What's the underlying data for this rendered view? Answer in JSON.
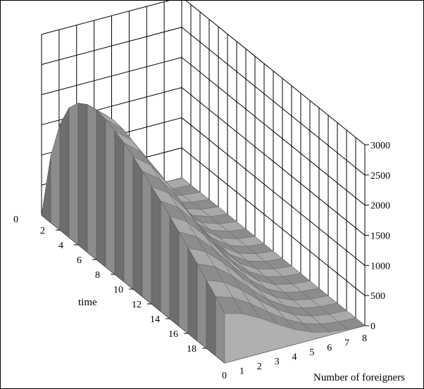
{
  "chart_data": {
    "type": "surface",
    "title": "",
    "xlabel": "time",
    "ylabel": "Number of foreigners",
    "zlabel": "",
    "x_ticks": [
      "2",
      "4",
      "6",
      "8",
      "10",
      "12",
      "14",
      "16",
      "18"
    ],
    "y_ticks": [
      "0",
      "1",
      "2",
      "3",
      "4",
      "5",
      "6",
      "7",
      "8"
    ],
    "z_ticks": [
      "0",
      "500",
      "1000",
      "1500",
      "2000",
      "2500",
      "3000"
    ],
    "corner_zero_label": "0",
    "xlim": [
      0,
      20
    ],
    "ylim": [
      0,
      8
    ],
    "zlim": [
      0,
      3000
    ],
    "grid": true,
    "x": [
      0,
      1,
      2,
      3,
      4,
      5,
      6,
      7,
      8,
      9,
      10,
      11,
      12,
      13,
      14,
      15,
      16,
      17,
      18,
      19,
      20
    ],
    "peak_at_zero_foreigners": [
      0,
      1100,
      1750,
      2150,
      2350,
      2450,
      2480,
      2450,
      2380,
      2300,
      2200,
      2080,
      1950,
      1830,
      1700,
      1560,
      1420,
      1280,
      1130,
      980,
      820
    ],
    "decay_per_foreigner": [
      1.0,
      0.9,
      0.72,
      0.5,
      0.3,
      0.15,
      0.06,
      0.02,
      0.005
    ],
    "colors": {
      "surface_top": "#a9a9a9",
      "surface_side": "#8c8c8c",
      "surface_dark": "#6e6e6e",
      "grid": "#000000"
    }
  }
}
